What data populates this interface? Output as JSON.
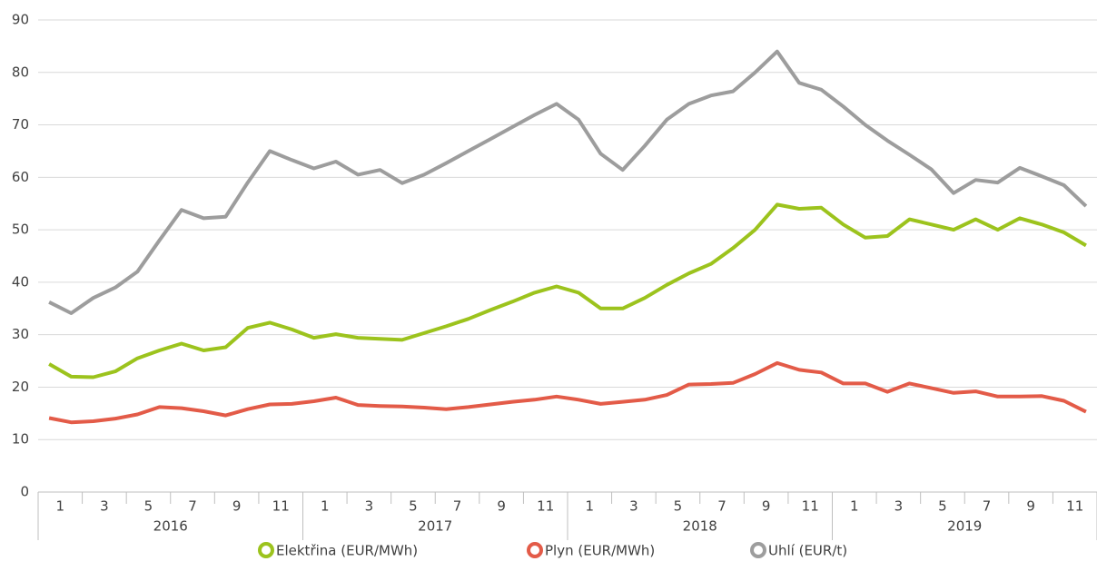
{
  "chart_data": {
    "type": "line",
    "categories": [
      "1",
      null,
      "3",
      null,
      "5",
      null,
      "7",
      null,
      "9",
      null,
      "11",
      null,
      "1",
      null,
      "3",
      null,
      "5",
      null,
      "7",
      null,
      "9",
      null,
      "11",
      null,
      "1",
      null,
      "3",
      null,
      "5",
      null,
      "7",
      null,
      "9",
      null,
      "11",
      null,
      "1",
      null,
      "3",
      null,
      "5",
      null,
      "7",
      null,
      "9",
      null,
      "11",
      null
    ],
    "years": [
      "2016",
      "2017",
      "2018",
      "2019"
    ],
    "series": [
      {
        "name": "Elektřina (EUR/MWh)",
        "color": "#9cc31d",
        "values": [
          24.4,
          22,
          21.9,
          23,
          25.5,
          27,
          28.3,
          27,
          27.6,
          31.3,
          32.3,
          31,
          29.4,
          30.1,
          29.4,
          29.2,
          29,
          30.3,
          31.6,
          33,
          34.7,
          36.3,
          38,
          39.2,
          38,
          35,
          35,
          37,
          39.5,
          41.7,
          43.5,
          46.5,
          50,
          54.8,
          54,
          54.2,
          51,
          48.5,
          48.8,
          52,
          51,
          50,
          52,
          50,
          52.2,
          51,
          49.5,
          47
        ]
      },
      {
        "name": "Plyn (EUR/MWh)",
        "color": "#e35b48",
        "values": [
          14.1,
          13.3,
          13.5,
          14,
          14.8,
          16.2,
          16,
          15.4,
          14.6,
          15.8,
          16.7,
          16.8,
          17.3,
          18,
          16.6,
          16.4,
          16.3,
          16.1,
          15.8,
          16.2,
          16.7,
          17.2,
          17.6,
          18.2,
          17.6,
          16.8,
          17.2,
          17.6,
          18.5,
          20.5,
          20.6,
          20.8,
          22.5,
          24.6,
          23.3,
          22.8,
          20.7,
          20.7,
          19.1,
          20.7,
          19.8,
          18.9,
          19.2,
          18.2,
          18.2,
          18.3,
          17.4,
          15.3
        ]
      },
      {
        "name": "Uhlí (EUR/t)",
        "color": "#9d9d9d",
        "values": [
          36.2,
          34.1,
          37,
          39,
          42,
          48,
          53.8,
          52.2,
          52.5,
          59,
          65,
          63.3,
          61.7,
          63,
          60.5,
          61.4,
          58.9,
          60.5,
          62.7,
          65,
          67.3,
          69.6,
          71.9,
          74,
          71,
          64.5,
          61.4,
          66,
          71,
          74,
          75.6,
          76.4,
          80,
          84,
          78,
          76.7,
          73.5,
          70,
          67,
          64.3,
          61.5,
          57,
          59.5,
          59,
          61.8,
          60.2,
          58.5,
          54.5
        ]
      }
    ],
    "ylim": [
      0,
      90
    ],
    "yticks": [
      0,
      10,
      20,
      30,
      40,
      50,
      60,
      70,
      80,
      90
    ],
    "grid": true,
    "legend": "bottom"
  }
}
